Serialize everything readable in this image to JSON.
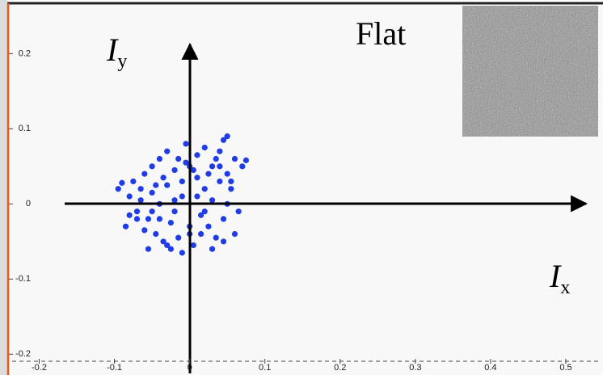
{
  "chart_data": {
    "type": "scatter",
    "ylabel_main": "I",
    "ylabel_sub": "y",
    "xlabel_main": "I",
    "xlabel_sub": "x",
    "annotation": "Flat",
    "xlim": [
      -0.236,
      0.543
    ],
    "ylim": [
      -0.218,
      0.266
    ],
    "xticks": [
      -0.2,
      -0.1,
      0,
      0.1,
      0.2,
      0.3,
      0.4,
      0.5
    ],
    "yticks": [
      0.2,
      0.1,
      0,
      -0.1,
      -0.2
    ],
    "grid": false,
    "series": [
      {
        "color": "#1f3ce6",
        "x": [
          -0.09,
          -0.085,
          -0.08,
          -0.075,
          -0.07,
          -0.065,
          -0.06,
          -0.055,
          -0.05,
          -0.05,
          -0.045,
          -0.04,
          -0.04,
          -0.035,
          -0.03,
          -0.03,
          -0.025,
          -0.02,
          -0.02,
          -0.015,
          -0.01,
          -0.01,
          -0.005,
          0,
          0,
          0.005,
          0.01,
          0.01,
          0.015,
          0.02,
          0.02,
          0.025,
          0.03,
          0.03,
          0.035,
          0.04,
          0.04,
          0.045,
          0.05,
          0.05,
          0.055,
          0.06,
          0.065,
          0.07,
          0.075,
          -0.08,
          -0.06,
          -0.045,
          -0.035,
          -0.025,
          -0.015,
          -0.005,
          0.005,
          0.015,
          0.025,
          0.035,
          0.045,
          0.055,
          -0.065,
          -0.05,
          -0.03,
          -0.01,
          0.01,
          0.03,
          0.05,
          -0.04,
          -0.02,
          0,
          0.02,
          0.04,
          -0.095,
          -0.07,
          0.06,
          0.045,
          -0.055
        ],
        "values": [
          0.028,
          -0.03,
          0.01,
          0.03,
          -0.01,
          0.005,
          0.04,
          -0.02,
          0.05,
          0.015,
          -0.04,
          0.06,
          0.0,
          -0.05,
          0.07,
          0.025,
          -0.06,
          0.045,
          -0.01,
          0.06,
          -0.065,
          0.03,
          0.08,
          -0.03,
          0.05,
          -0.055,
          0.065,
          0.01,
          -0.04,
          0.075,
          0.02,
          -0.03,
          0.05,
          0.005,
          -0.045,
          0.07,
          0.03,
          -0.02,
          0.09,
          0.04,
          0.02,
          0.06,
          -0.01,
          0.05,
          0.058,
          -0.015,
          -0.035,
          0.025,
          0.035,
          -0.025,
          -0.045,
          0.055,
          0.045,
          -0.015,
          0.04,
          0.06,
          -0.05,
          0.03,
          0.02,
          -0.01,
          -0.055,
          0.01,
          0.035,
          -0.06,
          0.0,
          -0.02,
          0.005,
          -0.04,
          -0.01,
          0.05,
          0.02,
          -0.02,
          -0.04,
          0.085,
          -0.06
        ]
      }
    ]
  }
}
